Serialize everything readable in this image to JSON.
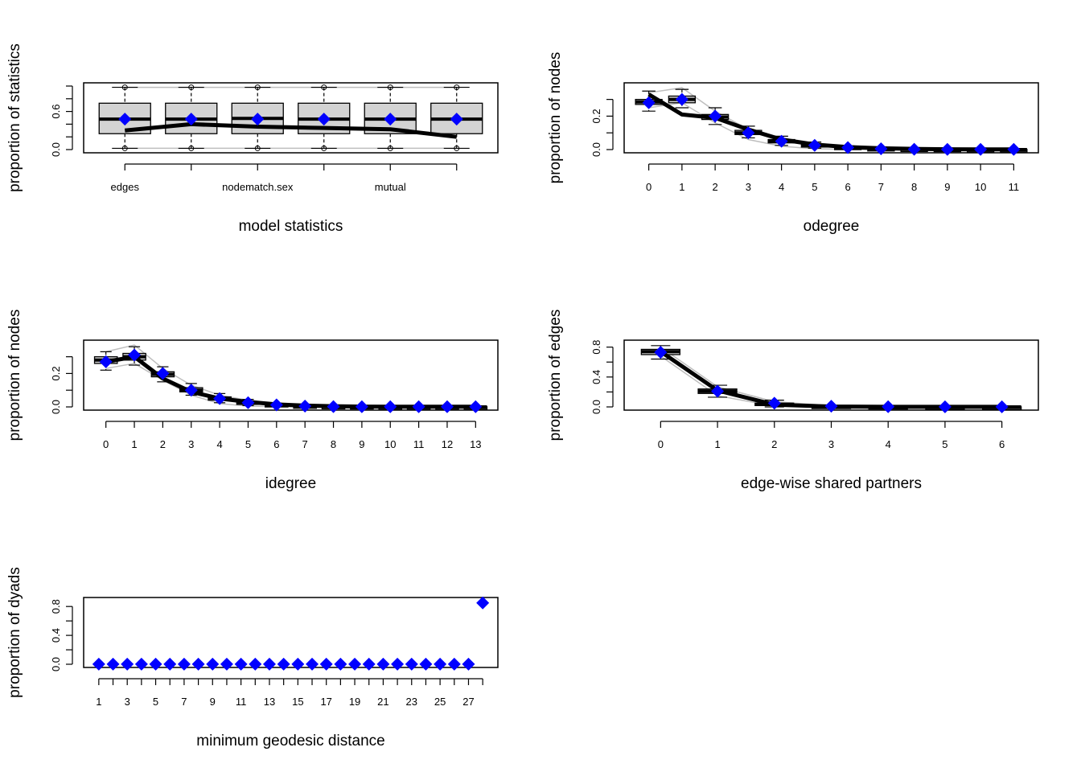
{
  "chart_data": [
    {
      "type": "box",
      "xlabel": "model statistics",
      "ylabel": "proportion of statistics",
      "ylim": [
        0,
        1
      ],
      "yticks": [
        "0.0",
        "0.6"
      ],
      "ytick_values": [
        0,
        0.2,
        0.4,
        0.6,
        0.8,
        1.0
      ],
      "x": [
        1,
        2,
        3,
        4,
        5,
        6
      ],
      "xtick_labels": [
        "edges",
        "",
        "nodematch.sex",
        "",
        "mutual",
        ""
      ],
      "boxes": [
        {
          "q1": 0.25,
          "median": 0.48,
          "q3": 0.73
        },
        {
          "q1": 0.25,
          "median": 0.48,
          "q3": 0.73
        },
        {
          "q1": 0.25,
          "median": 0.49,
          "q3": 0.73
        },
        {
          "q1": 0.25,
          "median": 0.48,
          "q3": 0.73
        },
        {
          "q1": 0.25,
          "median": 0.48,
          "q3": 0.73
        },
        {
          "q1": 0.25,
          "median": 0.48,
          "q3": 0.73
        }
      ],
      "whisker_low": [
        0.02,
        0.02,
        0.02,
        0.02,
        0.02,
        0.02
      ],
      "whisker_high": [
        0.98,
        0.98,
        0.98,
        0.98,
        0.98,
        0.98
      ],
      "range_low": [
        0.02,
        0.02,
        0.02,
        0.02,
        0.02,
        0.02
      ],
      "range_high": [
        0.98,
        0.98,
        0.98,
        0.98,
        0.98,
        0.98
      ],
      "observed": [
        0.3,
        0.4,
        0.36,
        0.34,
        0.32,
        0.2
      ],
      "means": [
        0.48,
        0.48,
        0.48,
        0.48,
        0.48,
        0.48
      ]
    },
    {
      "type": "box",
      "xlabel": "odegree",
      "ylabel": "proportion of nodes",
      "ylim": [
        0,
        0.38
      ],
      "yticks": [
        "0.0",
        "0.2"
      ],
      "ytick_values": [
        0,
        0.1,
        0.2,
        0.3
      ],
      "x": [
        0,
        1,
        2,
        3,
        4,
        5,
        6,
        7,
        8,
        9,
        10,
        11
      ],
      "xtick_labels": [
        "0",
        "1",
        "2",
        "3",
        "4",
        "5",
        "6",
        "7",
        "8",
        "9",
        "10",
        "11"
      ],
      "boxes": [
        {
          "q1": 0.27,
          "median": 0.285,
          "q3": 0.3
        },
        {
          "q1": 0.28,
          "median": 0.3,
          "q3": 0.32
        },
        {
          "q1": 0.18,
          "median": 0.195,
          "q3": 0.21
        },
        {
          "q1": 0.09,
          "median": 0.1,
          "q3": 0.115
        },
        {
          "q1": 0.04,
          "median": 0.05,
          "q3": 0.06
        },
        {
          "q1": 0.015,
          "median": 0.022,
          "q3": 0.03
        },
        {
          "q1": 0.006,
          "median": 0.01,
          "q3": 0.014
        },
        {
          "q1": 0.002,
          "median": 0.004,
          "q3": 0.006
        },
        {
          "q1": 0,
          "median": 0.002,
          "q3": 0.003
        },
        {
          "q1": 0,
          "median": 0.001,
          "q3": 0.002
        },
        {
          "q1": 0,
          "median": 0.001,
          "q3": 0.001
        },
        {
          "q1": 0,
          "median": 0,
          "q3": 0.001
        }
      ],
      "whisker_low": [
        0.23,
        0.25,
        0.15,
        0.07,
        0.025,
        0.008,
        0.002,
        0,
        0,
        0,
        0,
        0
      ],
      "whisker_high": [
        0.35,
        0.36,
        0.25,
        0.14,
        0.08,
        0.045,
        0.022,
        0.01,
        0.006,
        0.004,
        0.003,
        0.002
      ],
      "range_low": [
        0.25,
        0.28,
        0.16,
        0.06,
        0.02,
        0.005,
        0.001,
        0,
        0,
        0,
        0,
        0
      ],
      "range_high": [
        0.34,
        0.37,
        0.23,
        0.12,
        0.07,
        0.04,
        0.018,
        0.008,
        0.005,
        0.003,
        0.002,
        0.002
      ],
      "observed": [
        0.33,
        0.21,
        0.19,
        0.12,
        0.06,
        0.03,
        0.015,
        0.008,
        0.004,
        0.002,
        0.001,
        0.001
      ],
      "means": [
        0.28,
        0.3,
        0.2,
        0.1,
        0.05,
        0.025,
        0.012,
        0.005,
        0.002,
        0.001,
        0.001,
        0.001
      ]
    },
    {
      "type": "box",
      "xlabel": "idegree",
      "ylabel": "proportion of nodes",
      "ylim": [
        0,
        0.38
      ],
      "yticks": [
        "0.0",
        "0.2"
      ],
      "ytick_values": [
        0,
        0.1,
        0.2,
        0.3
      ],
      "x": [
        0,
        1,
        2,
        3,
        4,
        5,
        6,
        7,
        8,
        9,
        10,
        11,
        12,
        13
      ],
      "xtick_labels": [
        "0",
        "1",
        "2",
        "3",
        "4",
        "5",
        "6",
        "7",
        "8",
        "9",
        "10",
        "11",
        "12",
        "13"
      ],
      "boxes": [
        {
          "q1": 0.26,
          "median": 0.28,
          "q3": 0.3
        },
        {
          "q1": 0.28,
          "median": 0.3,
          "q3": 0.32
        },
        {
          "q1": 0.18,
          "median": 0.195,
          "q3": 0.21
        },
        {
          "q1": 0.09,
          "median": 0.1,
          "q3": 0.115
        },
        {
          "q1": 0.04,
          "median": 0.05,
          "q3": 0.06
        },
        {
          "q1": 0.015,
          "median": 0.022,
          "q3": 0.03
        },
        {
          "q1": 0.006,
          "median": 0.01,
          "q3": 0.014
        },
        {
          "q1": 0.002,
          "median": 0.004,
          "q3": 0.006
        },
        {
          "q1": 0,
          "median": 0.002,
          "q3": 0.003
        },
        {
          "q1": 0,
          "median": 0.001,
          "q3": 0.002
        },
        {
          "q1": 0,
          "median": 0.001,
          "q3": 0.001
        },
        {
          "q1": 0,
          "median": 0,
          "q3": 0.001
        },
        {
          "q1": 0,
          "median": 0,
          "q3": 0.001
        },
        {
          "q1": 0,
          "median": 0,
          "q3": 0.001
        }
      ],
      "whisker_low": [
        0.22,
        0.25,
        0.15,
        0.07,
        0.025,
        0.008,
        0.002,
        0,
        0,
        0,
        0,
        0,
        0,
        0
      ],
      "whisker_high": [
        0.33,
        0.36,
        0.24,
        0.14,
        0.08,
        0.045,
        0.022,
        0.01,
        0.006,
        0.004,
        0.003,
        0.002,
        0.002,
        0.002
      ],
      "range_low": [
        0.23,
        0.26,
        0.16,
        0.07,
        0.02,
        0.005,
        0.001,
        0,
        0,
        0,
        0,
        0,
        0,
        0
      ],
      "range_high": [
        0.33,
        0.37,
        0.23,
        0.13,
        0.07,
        0.04,
        0.018,
        0.008,
        0.005,
        0.003,
        0.002,
        0.002,
        0.001,
        0.001
      ],
      "observed": [
        0.27,
        0.3,
        0.17,
        0.09,
        0.05,
        0.03,
        0.015,
        0.008,
        0.004,
        0.002,
        0.001,
        0.001,
        0.001,
        0.001
      ],
      "means": [
        0.27,
        0.31,
        0.2,
        0.1,
        0.05,
        0.025,
        0.012,
        0.005,
        0.002,
        0.001,
        0.001,
        0.001,
        0.001,
        0.001
      ]
    },
    {
      "type": "box",
      "xlabel": "edge-wise shared partners",
      "ylabel": "proportion of edges",
      "ylim": [
        0,
        0.85
      ],
      "yticks": [
        "0.0",
        "0.4",
        "0.8"
      ],
      "ytick_values": [
        0,
        0.2,
        0.4,
        0.6,
        0.8
      ],
      "x": [
        0,
        1,
        2,
        3,
        4,
        5,
        6
      ],
      "xtick_labels": [
        "0",
        "1",
        "2",
        "3",
        "4",
        "5",
        "6"
      ],
      "boxes": [
        {
          "q1": 0.7,
          "median": 0.74,
          "q3": 0.77
        },
        {
          "q1": 0.18,
          "median": 0.21,
          "q3": 0.24
        },
        {
          "q1": 0.02,
          "median": 0.035,
          "q3": 0.05
        },
        {
          "q1": 0,
          "median": 0.005,
          "q3": 0.01
        },
        {
          "q1": 0,
          "median": 0.001,
          "q3": 0.003
        },
        {
          "q1": 0,
          "median": 0.001,
          "q3": 0.001
        },
        {
          "q1": 0,
          "median": 0,
          "q3": 0.001
        }
      ],
      "whisker_low": [
        0.64,
        0.13,
        0,
        0,
        0,
        0,
        0
      ],
      "whisker_high": [
        0.82,
        0.29,
        0.09,
        0.02,
        0.006,
        0.003,
        0.002
      ],
      "range_low": [
        0.68,
        0.15,
        0.01,
        0,
        0,
        0,
        0
      ],
      "range_high": [
        0.8,
        0.27,
        0.07,
        0.015,
        0.005,
        0.002,
        0.001
      ],
      "observed": [
        0.74,
        0.22,
        0.03,
        0.005,
        0.002,
        0.001,
        0.001
      ],
      "means": [
        0.73,
        0.21,
        0.05,
        0.01,
        0.003,
        0.001,
        0.001
      ]
    },
    {
      "type": "box",
      "xlabel": "minimum geodesic distance",
      "ylabel": "proportion of dyads",
      "ylim": [
        0,
        0.88
      ],
      "yticks": [
        "0.0",
        "0.4",
        "0.8"
      ],
      "ytick_values": [
        0,
        0.2,
        0.4,
        0.6,
        0.8
      ],
      "x": [
        1,
        2,
        3,
        4,
        5,
        6,
        7,
        8,
        9,
        10,
        11,
        12,
        13,
        14,
        15,
        16,
        17,
        18,
        19,
        20,
        21,
        22,
        23,
        24,
        25,
        26,
        27,
        28
      ],
      "xtick_labels": [
        "1",
        "",
        "3",
        "",
        "5",
        "",
        "7",
        "",
        "9",
        "",
        "11",
        "",
        "13",
        "",
        "15",
        "",
        "17",
        "",
        "19",
        "",
        "21",
        "",
        "23",
        "",
        "25",
        "",
        "27",
        ""
      ],
      "boxes": [],
      "whisker_low": [],
      "whisker_high": [],
      "range_low": [],
      "range_high": [],
      "observed": [
        0.002,
        0.002,
        0.002,
        0.002,
        0.002,
        0.002,
        0.002,
        0.002,
        0.002,
        0.002,
        0.002,
        0.002,
        0.002,
        0.002,
        0.002,
        0.002,
        0.002,
        0.002,
        0.002,
        0.002,
        0.002,
        0.002,
        0.002,
        0.002,
        0.002,
        0.002,
        0.002,
        0.002
      ],
      "means": [
        0.002,
        0.002,
        0.002,
        0.002,
        0.002,
        0.002,
        0.002,
        0.002,
        0.002,
        0.002,
        0.002,
        0.002,
        0.002,
        0.002,
        0.002,
        0.002,
        0.002,
        0.002,
        0.002,
        0.002,
        0.002,
        0.002,
        0.002,
        0.002,
        0.002,
        0.002,
        0.002,
        0.85
      ]
    }
  ],
  "colors": {
    "mean_marker": "#0000ff",
    "box_fill": "#d3d3d3",
    "range_line": "#bebebe",
    "observed_line": "#000000"
  }
}
